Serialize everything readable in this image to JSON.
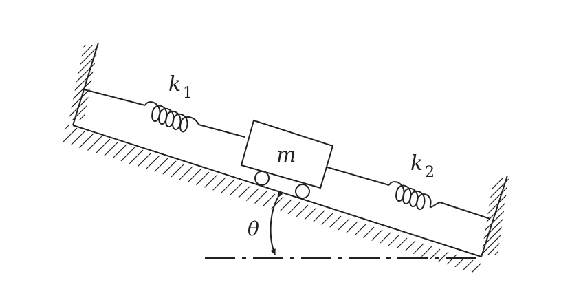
{
  "labels": {
    "spring_left": "k",
    "spring_left_sub": "1",
    "spring_right": "k",
    "spring_right_sub": "2",
    "mass": "m",
    "angle": "θ"
  },
  "colors": {
    "ink": "#231f20",
    "background": "#ffffff"
  }
}
